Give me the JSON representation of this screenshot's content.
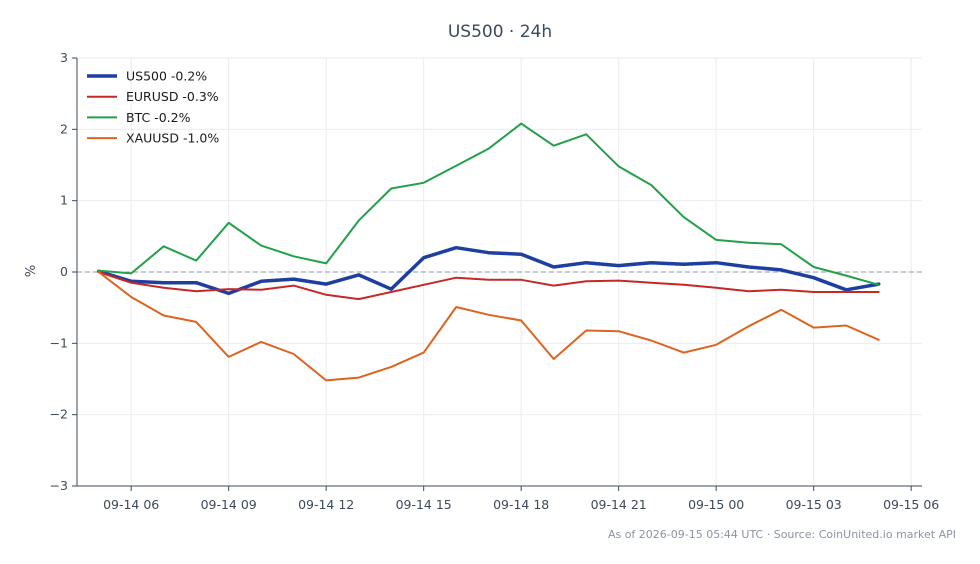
{
  "chart_data": {
    "type": "line",
    "title": "US500 · 24h",
    "ylabel": "%",
    "ylim": [
      -3,
      3
    ],
    "yticks": [
      -3,
      -2,
      -1,
      0,
      1,
      2,
      3
    ],
    "ytick_labels": [
      "−3",
      "−2",
      "−1",
      "0",
      "1",
      "2",
      "3"
    ],
    "xlim": [
      "09-14 04:20",
      "09-15 06:20"
    ],
    "xticks": [
      "09-14 06:00",
      "09-14 09:00",
      "09-14 12:00",
      "09-14 15:00",
      "09-14 18:00",
      "09-14 21:00",
      "09-15 00:00",
      "09-15 03:00",
      "09-15 06:00"
    ],
    "xtick_labels": [
      "09-14 06",
      "09-14 09",
      "09-14 12",
      "09-14 15",
      "09-14 18",
      "09-14 21",
      "09-15 00",
      "09-15 03",
      "09-15 06"
    ],
    "x": [
      "09-14 05:00",
      "09-14 06:00",
      "09-14 07:00",
      "09-14 08:00",
      "09-14 09:00",
      "09-14 10:00",
      "09-14 11:00",
      "09-14 12:00",
      "09-14 13:00",
      "09-14 14:00",
      "09-14 15:00",
      "09-14 16:00",
      "09-14 17:00",
      "09-14 18:00",
      "09-14 19:00",
      "09-14 20:00",
      "09-14 21:00",
      "09-14 22:00",
      "09-14 23:00",
      "09-15 00:00",
      "09-15 01:00",
      "09-15 02:00",
      "09-15 03:00",
      "09-15 04:00",
      "09-15 05:00"
    ],
    "series": [
      {
        "name": "US500 -0.2%",
        "color": "#1f3fa0",
        "width": "thick",
        "values": [
          0.01,
          -0.13,
          -0.15,
          -0.15,
          -0.3,
          -0.13,
          -0.1,
          -0.17,
          -0.04,
          -0.24,
          0.2,
          0.34,
          0.27,
          0.25,
          0.07,
          0.13,
          0.09,
          0.13,
          0.11,
          0.13,
          0.07,
          0.03,
          -0.08,
          -0.25,
          -0.17
        ]
      },
      {
        "name": "EURUSD -0.3%",
        "color": "#c62828",
        "width": "normal",
        "values": [
          0.0,
          -0.15,
          -0.22,
          -0.27,
          -0.24,
          -0.25,
          -0.19,
          -0.32,
          -0.38,
          -0.28,
          -0.18,
          -0.08,
          -0.11,
          -0.11,
          -0.19,
          -0.13,
          -0.12,
          -0.15,
          -0.18,
          -0.22,
          -0.27,
          -0.25,
          -0.28,
          -0.28,
          -0.28
        ]
      },
      {
        "name": "BTC -0.2%",
        "color": "#22a04a",
        "width": "normal",
        "values": [
          0.02,
          -0.02,
          0.36,
          0.16,
          0.69,
          0.37,
          0.22,
          0.12,
          0.72,
          1.17,
          1.25,
          1.49,
          1.73,
          2.08,
          1.77,
          1.93,
          1.48,
          1.22,
          0.77,
          0.45,
          0.41,
          0.39,
          0.07,
          -0.05,
          -0.18
        ]
      },
      {
        "name": "XAUUSD -1.0%",
        "color": "#dd6420",
        "width": "normal",
        "values": [
          0.0,
          -0.35,
          -0.61,
          -0.7,
          -1.19,
          -0.98,
          -1.15,
          -1.52,
          -1.48,
          -1.33,
          -1.13,
          -0.49,
          -0.6,
          -0.68,
          -1.22,
          -0.82,
          -0.83,
          -0.96,
          -1.13,
          -1.02,
          -0.76,
          -0.53,
          -0.78,
          -0.75,
          -0.95
        ]
      }
    ],
    "zero_line": true,
    "grid": true,
    "legend": "top-left",
    "footer": "As of 2026-09-15 05:44 UTC · Source: CoinUnited.io market API"
  }
}
